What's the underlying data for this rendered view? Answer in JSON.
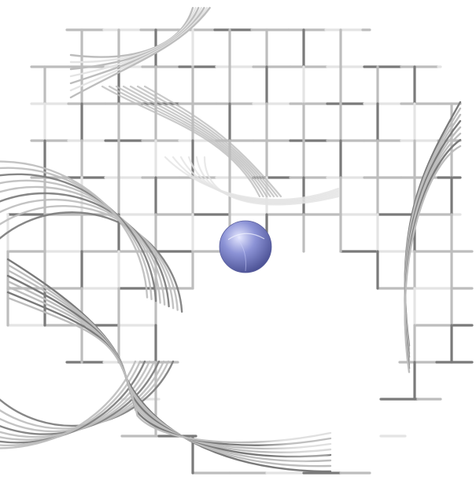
{
  "viewer": {
    "background": "#ffffff",
    "mesh_color_light": "#e4e4e4",
    "mesh_color_mid": "#bdbdbd",
    "mesh_color_dark": "#7a7a7a",
    "mesh_color_darkest": "#4a4a4a",
    "sphere": {
      "name": "atom-sphere",
      "color_highlight": "#e6e8ff",
      "color_base": "#8c93d6",
      "color_shadow": "#4d5396"
    }
  }
}
